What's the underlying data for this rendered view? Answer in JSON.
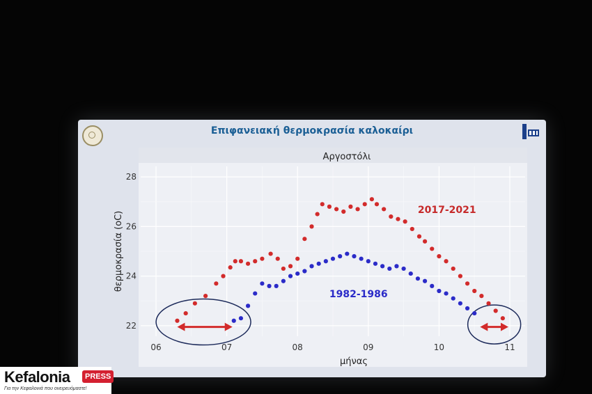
{
  "slide": {
    "title": "Επιφανειακή θερμοκρασία καλοκαίρι"
  },
  "brand": {
    "name": "Kefalonia",
    "badge": "PRESS",
    "tagline": "Για την Κεφαλονιά που ονειρευόμαστε!"
  },
  "chart_data": {
    "type": "scatter",
    "title": "Αργοστόλι",
    "xlabel": "μήνας",
    "ylabel": "θερμοκρασία (oC)",
    "xlim": [
      6.0,
      11.0
    ],
    "ylim": [
      21.8,
      28.2
    ],
    "x_ticks": [
      6,
      7,
      8,
      9,
      10,
      11
    ],
    "x_tick_labels": [
      "06",
      "07",
      "08",
      "09",
      "10",
      "11"
    ],
    "y_ticks": [
      22,
      24,
      26,
      28
    ],
    "y_tick_labels": [
      "22",
      "24",
      "26",
      "28"
    ],
    "grid": true,
    "series": [
      {
        "name": "2017-2021",
        "color": "#d22b2b",
        "points": [
          [
            6.3,
            22.2
          ],
          [
            6.42,
            22.5
          ],
          [
            6.55,
            22.9
          ],
          [
            6.7,
            23.2
          ],
          [
            6.85,
            23.7
          ],
          [
            6.95,
            24.0
          ],
          [
            7.05,
            24.35
          ],
          [
            7.12,
            24.6
          ],
          [
            7.2,
            24.6
          ],
          [
            7.3,
            24.5
          ],
          [
            7.4,
            24.6
          ],
          [
            7.5,
            24.7
          ],
          [
            7.62,
            24.9
          ],
          [
            7.72,
            24.7
          ],
          [
            7.8,
            24.3
          ],
          [
            7.9,
            24.4
          ],
          [
            8.0,
            24.7
          ],
          [
            8.1,
            25.5
          ],
          [
            8.2,
            26.0
          ],
          [
            8.28,
            26.5
          ],
          [
            8.35,
            26.9
          ],
          [
            8.45,
            26.8
          ],
          [
            8.55,
            26.7
          ],
          [
            8.65,
            26.6
          ],
          [
            8.75,
            26.8
          ],
          [
            8.85,
            26.7
          ],
          [
            8.95,
            26.9
          ],
          [
            9.05,
            27.1
          ],
          [
            9.12,
            26.9
          ],
          [
            9.22,
            26.7
          ],
          [
            9.32,
            26.4
          ],
          [
            9.42,
            26.3
          ],
          [
            9.52,
            26.2
          ],
          [
            9.62,
            25.9
          ],
          [
            9.72,
            25.6
          ],
          [
            9.8,
            25.4
          ],
          [
            9.9,
            25.1
          ],
          [
            10.0,
            24.8
          ],
          [
            10.1,
            24.6
          ],
          [
            10.2,
            24.3
          ],
          [
            10.3,
            24.0
          ],
          [
            10.4,
            23.7
          ],
          [
            10.5,
            23.4
          ],
          [
            10.6,
            23.2
          ],
          [
            10.7,
            22.9
          ],
          [
            10.8,
            22.6
          ],
          [
            10.9,
            22.3
          ]
        ]
      },
      {
        "name": "1982-1986",
        "color": "#2b2bc8",
        "points": [
          [
            7.1,
            22.2
          ],
          [
            7.2,
            22.3
          ],
          [
            7.3,
            22.8
          ],
          [
            7.4,
            23.3
          ],
          [
            7.5,
            23.7
          ],
          [
            7.6,
            23.6
          ],
          [
            7.7,
            23.6
          ],
          [
            7.8,
            23.8
          ],
          [
            7.9,
            24.0
          ],
          [
            8.0,
            24.1
          ],
          [
            8.1,
            24.2
          ],
          [
            8.2,
            24.4
          ],
          [
            8.3,
            24.5
          ],
          [
            8.4,
            24.6
          ],
          [
            8.5,
            24.7
          ],
          [
            8.6,
            24.8
          ],
          [
            8.7,
            24.9
          ],
          [
            8.8,
            24.8
          ],
          [
            8.9,
            24.7
          ],
          [
            9.0,
            24.6
          ],
          [
            9.1,
            24.5
          ],
          [
            9.2,
            24.4
          ],
          [
            9.3,
            24.3
          ],
          [
            9.4,
            24.4
          ],
          [
            9.5,
            24.3
          ],
          [
            9.6,
            24.1
          ],
          [
            9.7,
            23.9
          ],
          [
            9.8,
            23.8
          ],
          [
            9.9,
            23.6
          ],
          [
            10.0,
            23.4
          ],
          [
            10.1,
            23.3
          ],
          [
            10.2,
            23.1
          ],
          [
            10.3,
            22.9
          ],
          [
            10.4,
            22.7
          ],
          [
            10.5,
            22.5
          ]
        ]
      }
    ],
    "annotations": {
      "label_recent": "2017-2021",
      "label_old": "1982-1986",
      "recent_color": "#c62a2a",
      "old_color": "#2a2ac8",
      "arrow_color": "#d22b2b",
      "ellipse_color": "#1c2a5a"
    }
  }
}
